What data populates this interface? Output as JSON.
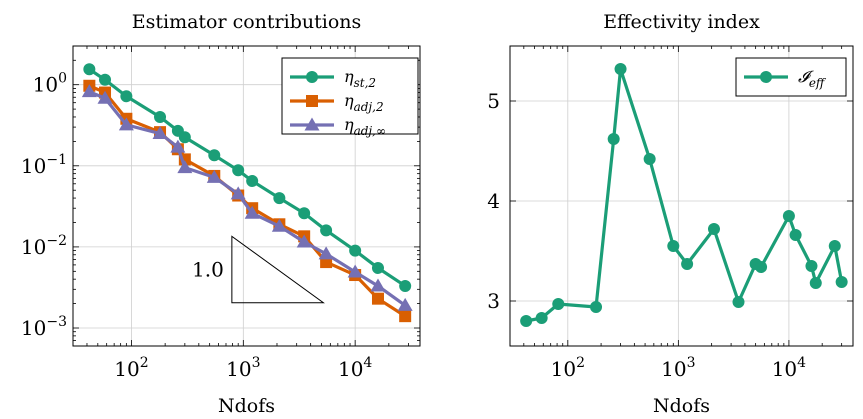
{
  "chart_data": [
    {
      "type": "line",
      "title": "Estimator contributions",
      "xlabel": "Ndofs",
      "ylabel": "",
      "xscale": "log",
      "yscale": "log",
      "xlim": [
        30,
        38000
      ],
      "ylim": [
        0.0006,
        3.0
      ],
      "grid": true,
      "legend_position": "top-right",
      "x_tick_labels": [
        {
          "base": "10",
          "exp": "2",
          "value": 100
        },
        {
          "base": "10",
          "exp": "3",
          "value": 1000
        },
        {
          "base": "10",
          "exp": "4",
          "value": 10000
        }
      ],
      "y_tick_labels": [
        {
          "base": "10",
          "exp": "0",
          "value": 1
        },
        {
          "base": "10",
          "exp": "−1",
          "value": 0.1
        },
        {
          "base": "10",
          "exp": "−2",
          "value": 0.01
        },
        {
          "base": "10",
          "exp": "−3",
          "value": 0.001
        }
      ],
      "x": [
        42,
        58,
        90,
        180,
        260,
        300,
        550,
        900,
        1200,
        2100,
        3500,
        5500,
        10000,
        16000,
        28000
      ],
      "series": [
        {
          "name": "η_st,2",
          "label_main": "η",
          "label_sub": "st,2",
          "color": "#1b9e77",
          "marker": "circle",
          "values": [
            1.55,
            1.15,
            0.72,
            0.4,
            0.27,
            0.225,
            0.135,
            0.088,
            0.065,
            0.04,
            0.026,
            0.016,
            0.009,
            0.0055,
            0.0033
          ]
        },
        {
          "name": "η_adj,2",
          "label_main": "η",
          "label_sub": "adj,2",
          "color": "#d95f02",
          "marker": "square",
          "values": [
            0.97,
            0.8,
            0.38,
            0.26,
            0.16,
            0.12,
            0.075,
            0.043,
            0.03,
            0.019,
            0.0135,
            0.0065,
            0.0045,
            0.0023,
            0.0014
          ]
        },
        {
          "name": "η_adj,∞",
          "label_main": "η",
          "label_sub": "adj,∞",
          "color": "#7570b3",
          "marker": "triangle",
          "values": [
            0.82,
            0.68,
            0.32,
            0.25,
            0.17,
            0.095,
            0.072,
            0.045,
            0.026,
            0.018,
            0.0115,
            0.0082,
            0.0049,
            0.0033,
            0.0019
          ]
        }
      ],
      "annotation": {
        "label": "1.0",
        "slope": -1,
        "x_start": 790,
        "x_end": 5200,
        "y_top": 0.0135
      }
    },
    {
      "type": "line",
      "title": "Effectivity index",
      "xlabel": "Ndofs",
      "ylabel": "",
      "xscale": "log",
      "yscale": "linear",
      "xlim": [
        30,
        38000
      ],
      "ylim": [
        2.55,
        5.55
      ],
      "grid": true,
      "legend_position": "top-right",
      "x_tick_labels": [
        {
          "base": "10",
          "exp": "2",
          "value": 100
        },
        {
          "base": "10",
          "exp": "3",
          "value": 1000
        },
        {
          "base": "10",
          "exp": "4",
          "value": 10000
        }
      ],
      "y_tick_labels": [
        {
          "text": "3",
          "value": 3
        },
        {
          "text": "4",
          "value": 4
        },
        {
          "text": "5",
          "value": 5
        }
      ],
      "x": [
        42,
        58,
        82,
        180,
        260,
        300,
        550,
        900,
        1200,
        2100,
        3500,
        5000,
        5600,
        10000,
        11500,
        16000,
        17500,
        26000,
        30000
      ],
      "series": [
        {
          "name": "I_eff",
          "label_main": "𝓘",
          "label_sub": "eff",
          "color": "#1b9e77",
          "marker": "circle",
          "values": [
            2.8,
            2.83,
            2.97,
            2.94,
            4.62,
            5.32,
            4.42,
            3.55,
            3.37,
            3.72,
            2.99,
            3.37,
            3.34,
            3.85,
            3.66,
            3.35,
            3.18,
            3.55,
            3.19
          ]
        }
      ]
    }
  ]
}
